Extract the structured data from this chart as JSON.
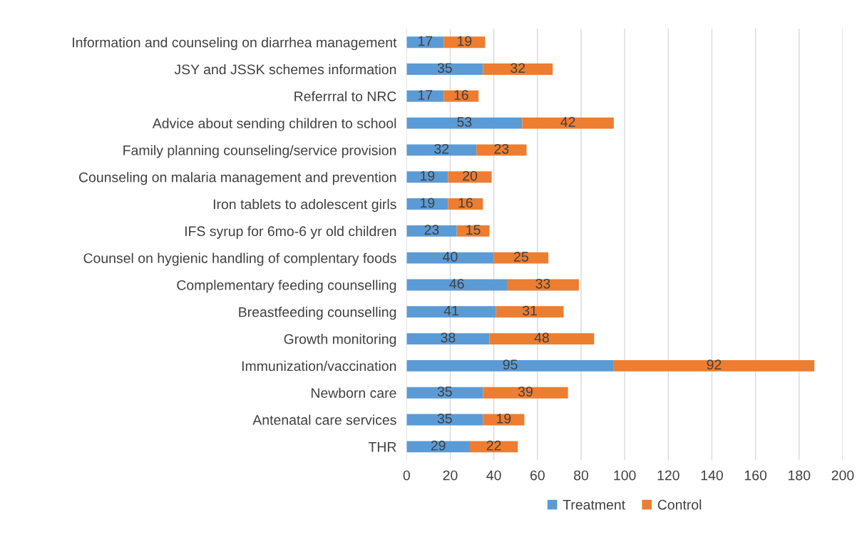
{
  "chart_data": {
    "type": "bar",
    "orientation": "horizontal",
    "stacked": true,
    "categories": [
      "Information and counseling on diarrhea management",
      "JSY and JSSK schemes information",
      "Referrral to NRC",
      "Advice about sending children to school",
      "Family planning counseling/service provision",
      "Counseling on malaria management and prevention",
      "Iron tablets to adolescent girls",
      "IFS syrup for 6mo-6 yr old children",
      "Counsel on hygienic handling of complentary foods",
      "Complementary feeding counselling",
      "Breastfeeding counselling",
      "Growth monitoring",
      "Immunization/vaccination",
      "Newborn care",
      "Antenatal care services",
      "THR"
    ],
    "series": [
      {
        "name": "Treatment",
        "color": "#5b9bd5",
        "values": [
          17,
          35,
          17,
          53,
          32,
          19,
          19,
          23,
          40,
          46,
          41,
          38,
          95,
          35,
          35,
          29
        ]
      },
      {
        "name": "Control",
        "color": "#ed7d31",
        "values": [
          19,
          32,
          16,
          42,
          23,
          20,
          16,
          15,
          25,
          33,
          31,
          48,
          92,
          39,
          19,
          22
        ]
      }
    ],
    "xlim": [
      0,
      200
    ],
    "xticks": [
      0,
      20,
      40,
      60,
      80,
      100,
      120,
      140,
      160,
      180,
      200
    ],
    "grid": "x",
    "legend": "bottom",
    "data_labels": true
  }
}
